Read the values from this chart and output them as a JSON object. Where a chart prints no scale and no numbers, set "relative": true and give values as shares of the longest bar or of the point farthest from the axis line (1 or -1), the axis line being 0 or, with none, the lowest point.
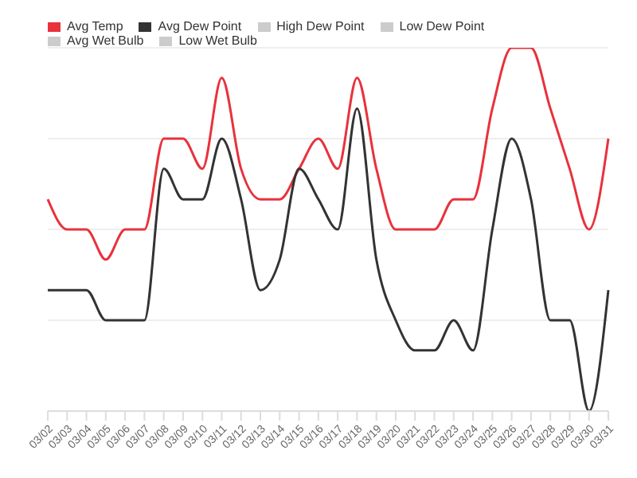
{
  "chart_data": {
    "type": "line",
    "relative": true,
    "grid": "y",
    "legend": "top left",
    "marker": "none",
    "categories": [
      "03/02",
      "03/03",
      "03/04",
      "03/05",
      "03/06",
      "03/07",
      "03/08",
      "03/09",
      "03/10",
      "03/11",
      "03/12",
      "03/13",
      "03/14",
      "03/15",
      "03/16",
      "03/17",
      "03/18",
      "03/19",
      "03/20",
      "03/21",
      "03/22",
      "03/23",
      "03/24",
      "03/25",
      "03/26",
      "03/27",
      "03/28",
      "03/29",
      "03/30",
      "03/31"
    ],
    "series": [
      {
        "name": "Avg Temp",
        "color": "#e8323c",
        "values": [
          0.583,
          0.5,
          0.5,
          0.417,
          0.5,
          0.5,
          0.75,
          0.75,
          0.667,
          0.917,
          0.667,
          0.583,
          0.583,
          0.667,
          0.75,
          0.667,
          0.917,
          0.667,
          0.5,
          0.5,
          0.5,
          0.583,
          0.583,
          0.833,
          1,
          1,
          0.833,
          0.667,
          0.5,
          0.75
        ]
      },
      {
        "name": "Avg Dew Point",
        "color": "#333333",
        "values": [
          0.333,
          0.333,
          0.333,
          0.25,
          0.25,
          0.25,
          0.667,
          0.583,
          0.583,
          0.75,
          0.583,
          0.333,
          0.417,
          0.667,
          0.583,
          0.5,
          0.833,
          0.417,
          0.25,
          0.167,
          0.167,
          0.25,
          0.167,
          0.5,
          0.75,
          0.583,
          0.25,
          0.25,
          0,
          0.333
        ]
      },
      {
        "name": "High Dew Point",
        "color": "#cccccc",
        "values": [
          null,
          null,
          null,
          null,
          null,
          null,
          null,
          null,
          null,
          null,
          null,
          null,
          null,
          null,
          null,
          null,
          null,
          null,
          null,
          null,
          null,
          null,
          null,
          null,
          null,
          null,
          null,
          null,
          null,
          null
        ]
      },
      {
        "name": "Low Dew Point",
        "color": "#cccccc",
        "values": [
          null,
          null,
          null,
          null,
          null,
          null,
          null,
          null,
          null,
          null,
          null,
          null,
          null,
          null,
          null,
          null,
          null,
          null,
          null,
          null,
          null,
          null,
          null,
          null,
          null,
          null,
          null,
          null,
          null,
          null
        ]
      },
      {
        "name": "Avg Wet Bulb",
        "color": "#cccccc",
        "values": [
          null,
          null,
          null,
          null,
          null,
          null,
          null,
          null,
          null,
          null,
          null,
          null,
          null,
          null,
          null,
          null,
          null,
          null,
          null,
          null,
          null,
          null,
          null,
          null,
          null,
          null,
          null,
          null,
          null,
          null
        ]
      },
      {
        "name": "Low Wet Bulb",
        "color": "#cccccc",
        "values": [
          null,
          null,
          null,
          null,
          null,
          null,
          null,
          null,
          null,
          null,
          null,
          null,
          null,
          null,
          null,
          null,
          null,
          null,
          null,
          null,
          null,
          null,
          null,
          null,
          null,
          null,
          null,
          null,
          null,
          null
        ]
      }
    ]
  }
}
